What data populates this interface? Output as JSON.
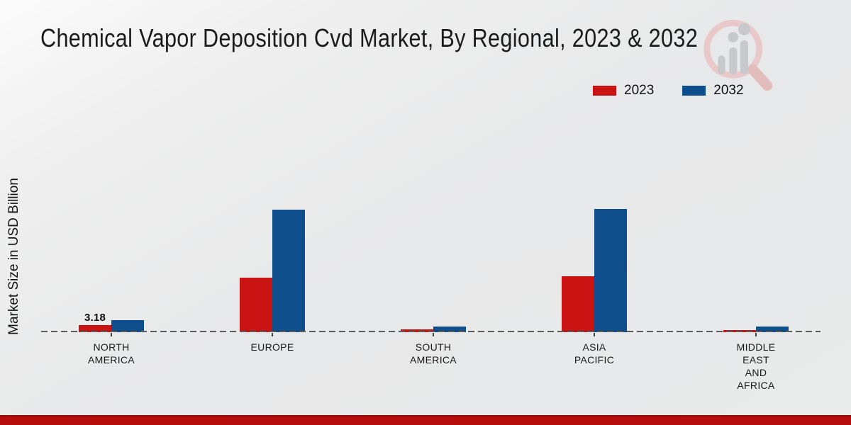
{
  "header": {
    "title": "Chemical Vapor Deposition Cvd Market, By Regional, 2023 & 2032"
  },
  "legend": {
    "position": "top-right",
    "items": [
      {
        "label": "2023",
        "color": "#c91212"
      },
      {
        "label": "2032",
        "color": "#0e4e8c"
      }
    ]
  },
  "watermark_icon": "magnifier-bar-chart-logo",
  "colors": {
    "series_2023": "#c91212",
    "series_2032": "#0e4e8c",
    "baseline": "#5d5d5d",
    "footer_bar": "#b80d0d",
    "footer_bar_edge": "#8a0909",
    "background": "#e8e9ea",
    "text": "#1a1a1a"
  },
  "chart_data": {
    "type": "bar",
    "title": "Chemical Vapor Deposition Cvd Market, By Regional, 2023 & 2032",
    "xlabel": "",
    "ylabel": "Market Size in USD Billion",
    "unit": "USD Billion",
    "grid": false,
    "legend_position": "top-right",
    "baseline_value": 0,
    "baseline_style": "dashed",
    "ylim": [
      0,
      60
    ],
    "categories": [
      "NORTH AMERICA",
      "EUROPE",
      "SOUTH AMERICA",
      "ASIA PACIFIC",
      "MIDDLE EAST AND AFRICA"
    ],
    "category_label_lines": [
      [
        "NORTH",
        "AMERICA"
      ],
      [
        "EUROPE"
      ],
      [
        "SOUTH",
        "AMERICA"
      ],
      [
        "ASIA",
        "PACIFIC"
      ],
      [
        "MIDDLE",
        "EAST",
        "AND",
        "AFRICA"
      ]
    ],
    "series": [
      {
        "name": "2023",
        "color": "#c91212",
        "values": [
          3.18,
          24.5,
          1.3,
          25.1,
          1.0
        ]
      },
      {
        "name": "2032",
        "color": "#0e4e8c",
        "values": [
          5.4,
          55.0,
          2.5,
          55.3,
          2.5
        ]
      }
    ],
    "bar_value_labels": [
      {
        "series_index": 0,
        "category_index": 0,
        "text": "3.18"
      }
    ]
  }
}
